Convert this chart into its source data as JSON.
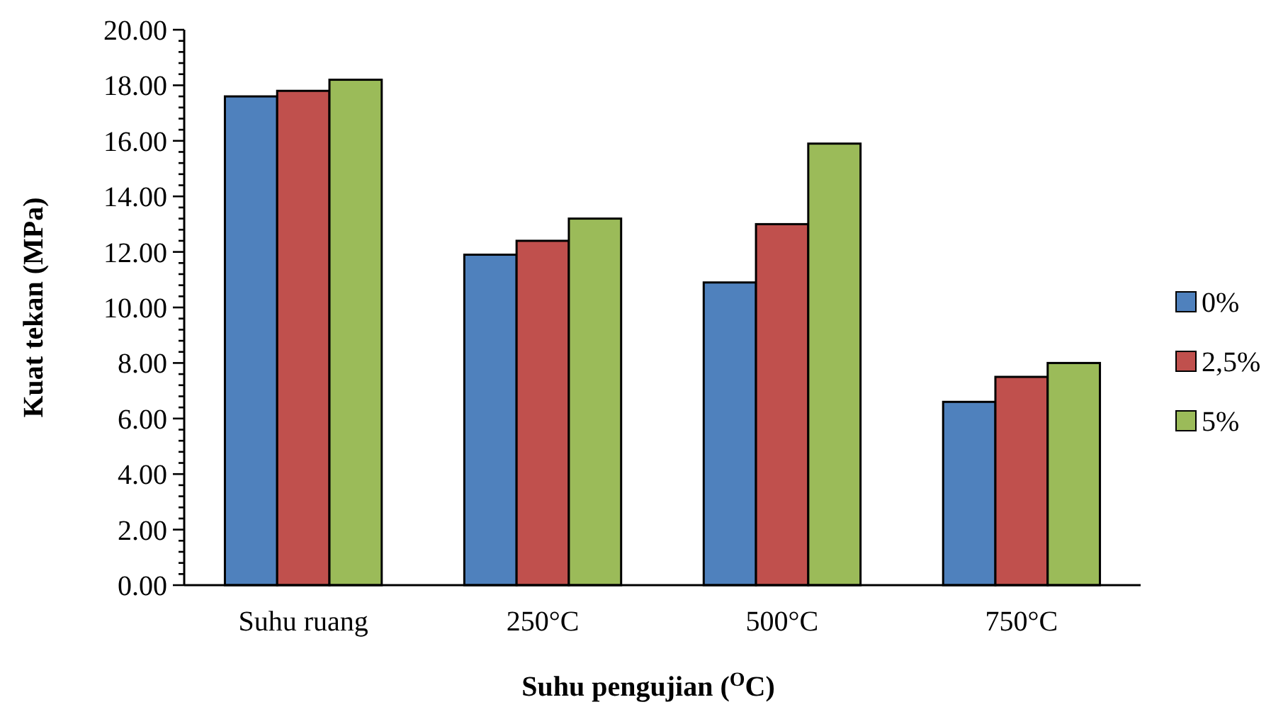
{
  "chart_data": {
    "type": "bar",
    "xlabel": "Suhu pengujian ($^{O}$C)",
    "ylabel": "Kuat tekan (MPa)",
    "categories": [
      "Suhu ruang",
      "250°C",
      "500°C",
      "750°C"
    ],
    "series": [
      {
        "name": "0%",
        "color": "#4f81bd",
        "values": [
          17.6,
          11.9,
          10.9,
          6.6
        ]
      },
      {
        "name": "2,5%",
        "color": "#c0504d",
        "values": [
          17.8,
          12.4,
          13.0,
          7.5
        ]
      },
      {
        "name": "5%",
        "color": "#9bbb59",
        "values": [
          18.2,
          13.2,
          15.9,
          8.0
        ]
      }
    ],
    "ylim": [
      0,
      20
    ],
    "yticks": [
      {
        "value": 0,
        "label": "0.00"
      },
      {
        "value": 0.4,
        "label": null
      },
      {
        "value": 0.8,
        "label": null
      },
      {
        "value": 1.2,
        "label": null
      },
      {
        "value": 1.6,
        "label": null
      },
      {
        "value": 2,
        "label": "2.00"
      },
      {
        "value": 2.4,
        "label": null
      },
      {
        "value": 2.8,
        "label": null
      },
      {
        "value": 3.2,
        "label": null
      },
      {
        "value": 3.6,
        "label": null
      },
      {
        "value": 4,
        "label": "4.00"
      },
      {
        "value": 4.4,
        "label": null
      },
      {
        "value": 4.8,
        "label": null
      },
      {
        "value": 5.2,
        "label": null
      },
      {
        "value": 5.6,
        "label": null
      },
      {
        "value": 6,
        "label": "6.00"
      },
      {
        "value": 6.4,
        "label": null
      },
      {
        "value": 6.8,
        "label": null
      },
      {
        "value": 7.2,
        "label": null
      },
      {
        "value": 7.6,
        "label": null
      },
      {
        "value": 8,
        "label": "8.00"
      },
      {
        "value": 8.4,
        "label": null
      },
      {
        "value": 8.8,
        "label": null
      },
      {
        "value": 9.2,
        "label": null
      },
      {
        "value": 9.6,
        "label": null
      },
      {
        "value": 10,
        "label": "10.00"
      },
      {
        "value": 10.4,
        "label": null
      },
      {
        "value": 10.8,
        "label": null
      },
      {
        "value": 11.2,
        "label": null
      },
      {
        "value": 11.6,
        "label": null
      },
      {
        "value": 12,
        "label": "12.00"
      },
      {
        "value": 12.4,
        "label": null
      },
      {
        "value": 12.8,
        "label": null
      },
      {
        "value": 13.2,
        "label": null
      },
      {
        "value": 13.6,
        "label": null
      },
      {
        "value": 14,
        "label": "14.00"
      },
      {
        "value": 14.4,
        "label": null
      },
      {
        "value": 14.8,
        "label": null
      },
      {
        "value": 15.2,
        "label": null
      },
      {
        "value": 15.6,
        "label": null
      },
      {
        "value": 16,
        "label": "16.00"
      },
      {
        "value": 16.4,
        "label": null
      },
      {
        "value": 16.8,
        "label": null
      },
      {
        "value": 17.2,
        "label": null
      },
      {
        "value": 17.6,
        "label": null
      },
      {
        "value": 18,
        "label": "18.00"
      },
      {
        "value": 18.4,
        "label": null
      },
      {
        "value": 18.8,
        "label": null
      },
      {
        "value": 19.2,
        "label": null
      },
      {
        "value": 19.6,
        "label": null
      },
      {
        "value": 20,
        "label": "20.00"
      }
    ],
    "legend": "right"
  }
}
